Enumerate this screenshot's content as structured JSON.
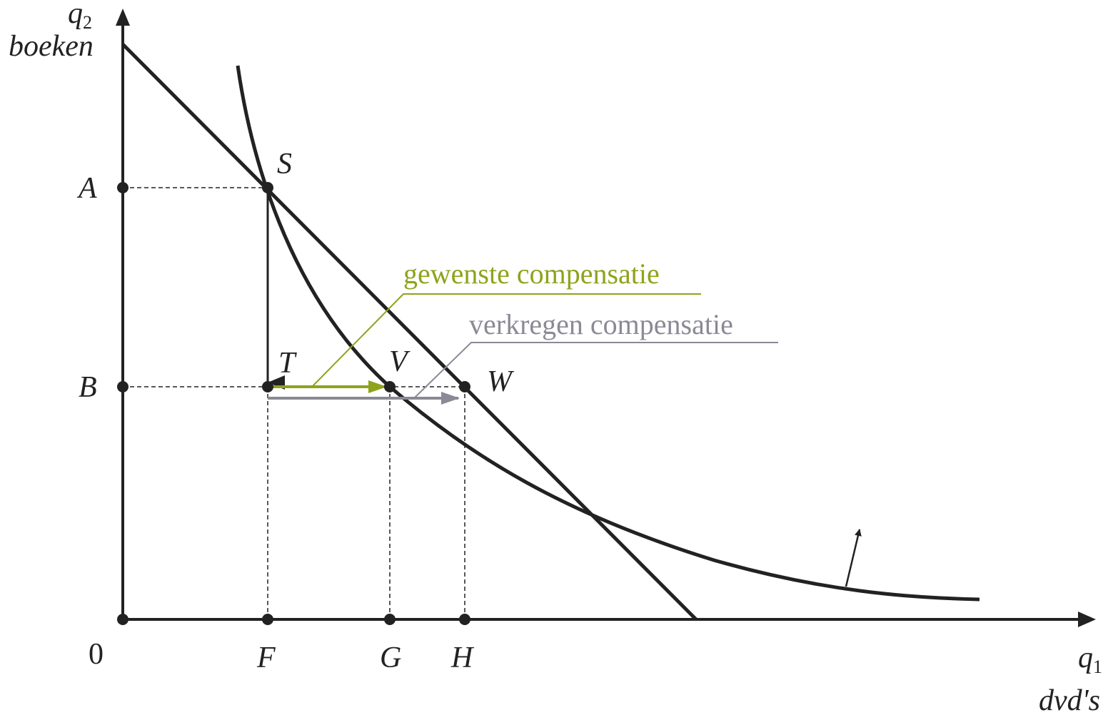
{
  "y_axis": {
    "symbol": "q",
    "subscript": "2",
    "name": "boeken"
  },
  "x_axis": {
    "symbol": "q",
    "subscript": "1",
    "name": "dvd's"
  },
  "origin": "0",
  "points": {
    "A": "A",
    "B": "B",
    "S": "S",
    "T": "T",
    "V": "V",
    "W": "W",
    "F": "F",
    "G": "G",
    "H": "H"
  },
  "annotations": {
    "desired": "gewenste compensatie",
    "received": "verkregen compensatie"
  }
}
